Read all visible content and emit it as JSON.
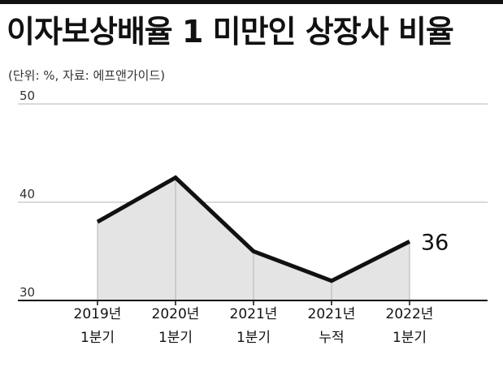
{
  "title": "이자보상배율 1 미만인 상장사 비율",
  "subtitle": "(단위: %, 자료: 에프앤가이드)",
  "chart_data": {
    "type": "area",
    "categories": [
      [
        "2019년",
        "1분기"
      ],
      [
        "2020년",
        "1분기"
      ],
      [
        "2021년",
        "1분기"
      ],
      [
        "2021년",
        "누적"
      ],
      [
        "2022년",
        "1분기"
      ]
    ],
    "values": [
      38,
      42.5,
      35,
      32,
      36
    ],
    "ylim": [
      30,
      50
    ],
    "yticks": [
      30,
      40,
      50
    ],
    "grid": true,
    "value_label": "36",
    "colors": {
      "line": "#111111",
      "fill": "#e4e4e4",
      "grid": "#b5b5b5",
      "axis": "#111111"
    }
  }
}
